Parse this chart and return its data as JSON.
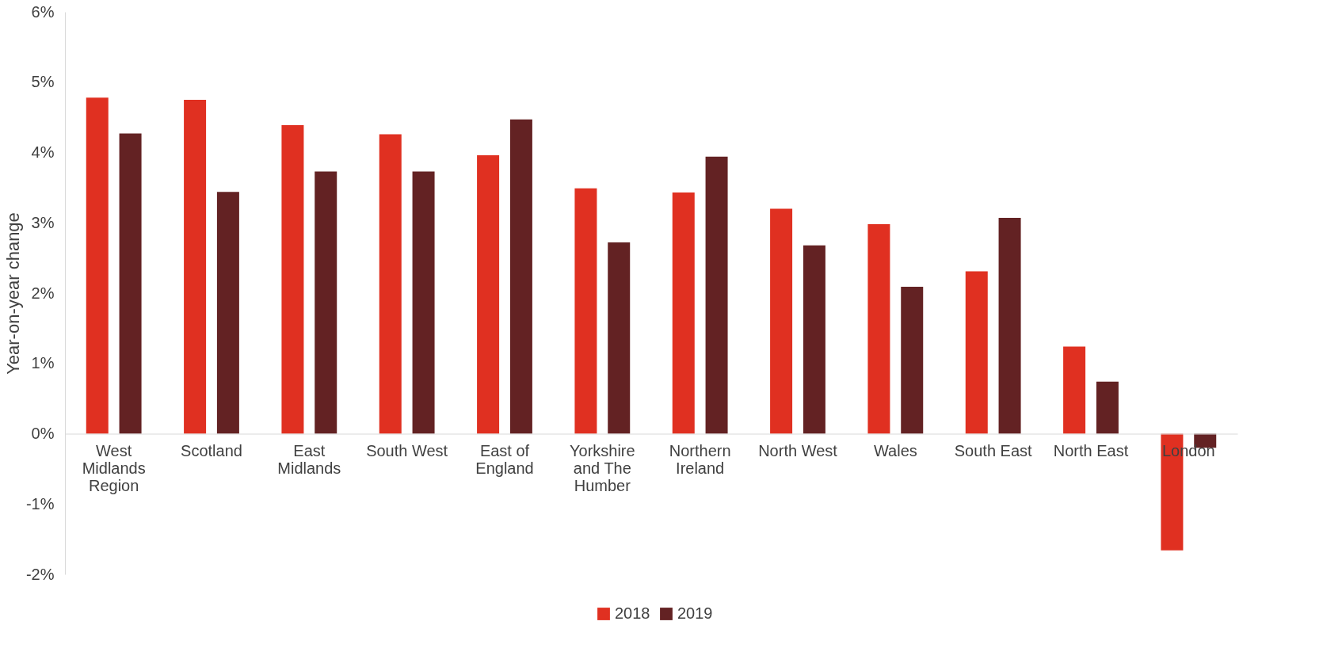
{
  "chart_data": {
    "type": "bar",
    "ylabel": "Year-on-year change",
    "categories": [
      "West Midlands Region",
      "Scotland",
      "East Midlands",
      "South West",
      "East of England",
      "Yorkshire and The Humber",
      "Northern Ireland",
      "North West",
      "Wales",
      "South East",
      "North East",
      "London"
    ],
    "series": [
      {
        "name": "2018",
        "color": "#e03021",
        "values": [
          4.78,
          4.75,
          4.39,
          4.26,
          3.96,
          3.49,
          3.43,
          3.2,
          2.98,
          2.31,
          1.24,
          -1.66
        ]
      },
      {
        "name": "2019",
        "color": "#632223",
        "values": [
          4.27,
          3.44,
          3.73,
          3.73,
          4.47,
          2.72,
          3.94,
          2.68,
          2.09,
          3.07,
          0.74,
          -0.2
        ]
      }
    ],
    "ylim": [
      -2,
      6
    ],
    "yticks": [
      {
        "value": -2,
        "label": "-2%"
      },
      {
        "value": -1,
        "label": "-1%"
      },
      {
        "value": 0,
        "label": "0%"
      },
      {
        "value": 1,
        "label": "1%"
      },
      {
        "value": 2,
        "label": "2%"
      },
      {
        "value": 3,
        "label": "3%"
      },
      {
        "value": 4,
        "label": "4%"
      },
      {
        "value": 5,
        "label": "5%"
      },
      {
        "value": 6,
        "label": "6%"
      }
    ],
    "grid": false,
    "legend": "bottom"
  }
}
